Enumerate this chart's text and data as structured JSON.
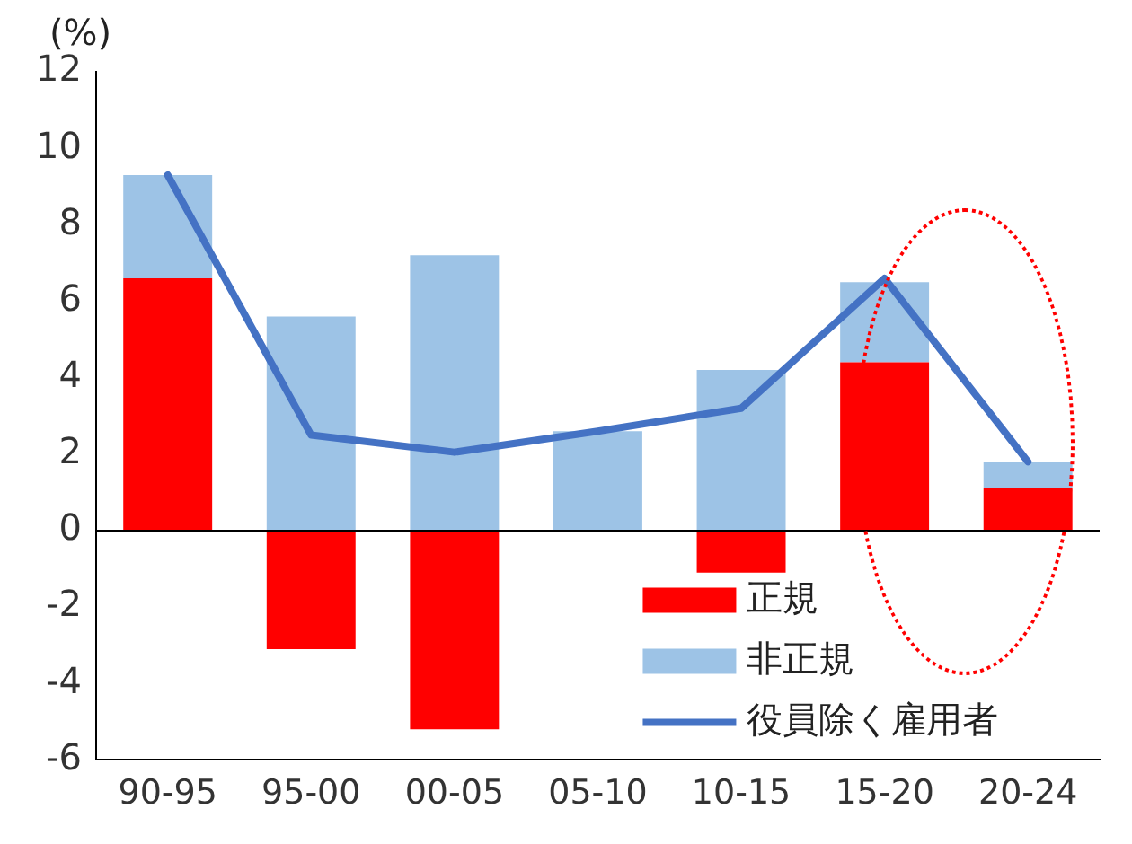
{
  "chart_data": {
    "type": "bar",
    "stacked": true,
    "ylabel": "(%)",
    "categories": [
      "90-95",
      "95-00",
      "00-05",
      "05-10",
      "10-15",
      "15-20",
      "20-24"
    ],
    "series": [
      {
        "name": "正規",
        "color": "#ff0000",
        "values": [
          6.6,
          -3.1,
          -5.2,
          0,
          -1.1,
          4.4,
          1.1
        ]
      },
      {
        "name": "非正規",
        "color": "#9dc3e6",
        "values": [
          2.7,
          5.6,
          7.2,
          2.6,
          4.2,
          2.1,
          0.7
        ]
      },
      {
        "name": "役員除く雇用者",
        "type": "line",
        "color": "#4472c4",
        "values": [
          9.3,
          2.5,
          2.05,
          2.6,
          3.2,
          6.6,
          1.8
        ]
      }
    ],
    "ylim": [
      -6,
      12
    ],
    "yticks": [
      -6,
      -4,
      -2,
      0,
      2,
      4,
      6,
      8,
      10,
      12
    ],
    "grid": false,
    "legend": "bottom right",
    "marker": "none",
    "ref_lines": [
      {
        "axis": "y",
        "value": 0
      }
    ]
  }
}
